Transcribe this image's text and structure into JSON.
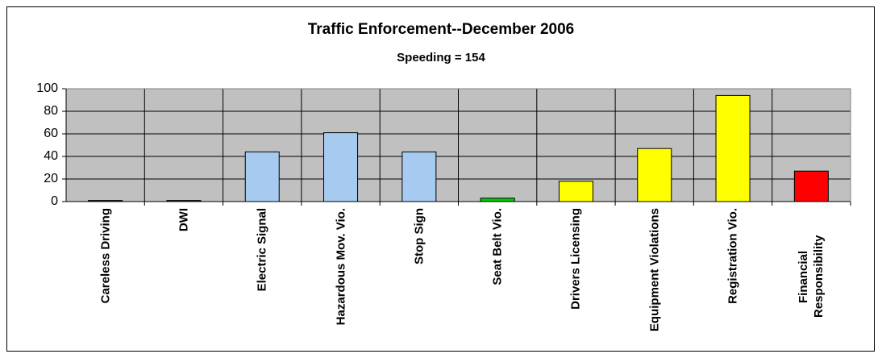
{
  "chart_data": {
    "type": "bar",
    "title": "Traffic Enforcement--December 2006",
    "subtitle": "Speeding = 154",
    "categories": [
      "Careless Driving",
      "DWI",
      "Electric Signal",
      "Hazardous Mov. Vio.",
      "Stop Sign",
      "Seat Belt Vio.",
      "Drivers Licensing",
      "Equipment Violations",
      "Registration Vio.",
      "Financial Responsibility"
    ],
    "values": [
      1,
      1,
      44,
      61,
      44,
      3,
      18,
      47,
      94,
      27
    ],
    "colors": [
      "#333366",
      "#333366",
      "#a6caf0",
      "#a6caf0",
      "#a6caf0",
      "#00cc00",
      "#ffff00",
      "#ffff00",
      "#ffff00",
      "#ff0000"
    ],
    "ylim": [
      0,
      100
    ],
    "yticks": [
      0,
      20,
      40,
      60,
      80,
      100
    ],
    "grid": true
  }
}
